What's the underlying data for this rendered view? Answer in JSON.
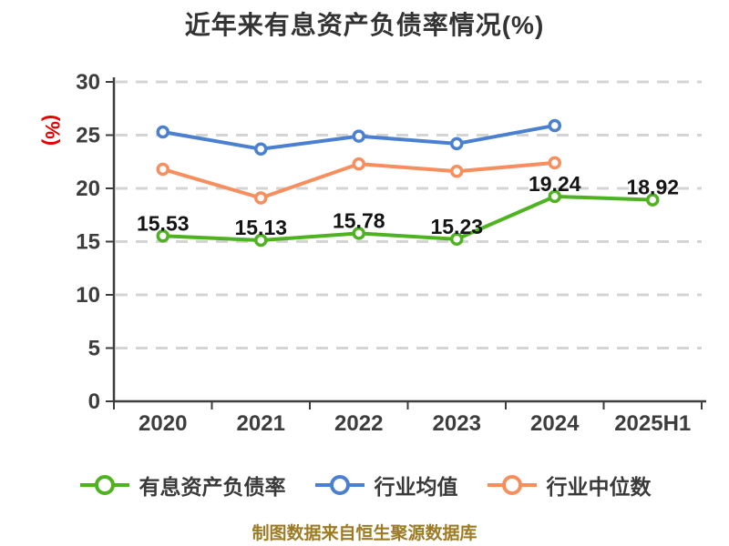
{
  "title": "近年来有息资产负债率情况(%)",
  "footer": "制图数据来自恒生聚源数据库",
  "colors": {
    "title_text": "#333333",
    "axis": "#3d3d3d",
    "grid": "#d4d4d4",
    "y_unit_label": "#e60000",
    "data_label": "#141414",
    "footer_text": "#9c7b24",
    "series_green": "#4fb321",
    "series_blue": "#4b80d1",
    "series_orange": "#f78e5e"
  },
  "chart_data": {
    "type": "line",
    "title": "近年来有息资产负债率情况(%)",
    "ylabel": "(%)",
    "xlabel": "",
    "ylim": [
      0,
      30
    ],
    "yticks": [
      0,
      5,
      10,
      15,
      20,
      25,
      30
    ],
    "grid": "dashed-horizontal",
    "legend_position": "bottom",
    "categories": [
      "2020",
      "2021",
      "2022",
      "2023",
      "2024",
      "2025H1"
    ],
    "series": [
      {
        "name": "有息资产负债率",
        "color": "#4fb321",
        "values": [
          15.53,
          15.13,
          15.78,
          15.23,
          19.24,
          18.92
        ],
        "data_labels": [
          "15.53",
          "15.13",
          "15.78",
          "15.23",
          "19.24",
          "18.92"
        ],
        "labeled": true
      },
      {
        "name": "行业均值",
        "color": "#4b80d1",
        "values": [
          25.3,
          23.7,
          24.9,
          24.2,
          25.9,
          null
        ],
        "labeled": false
      },
      {
        "name": "行业中位数",
        "color": "#f78e5e",
        "values": [
          21.8,
          19.1,
          22.3,
          21.6,
          22.4,
          null
        ],
        "labeled": false
      }
    ]
  }
}
